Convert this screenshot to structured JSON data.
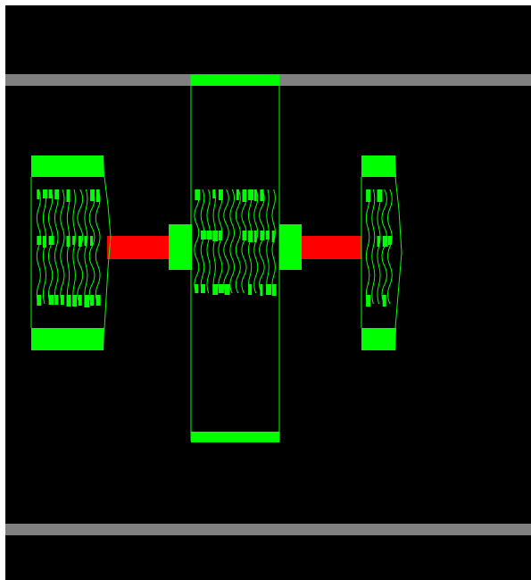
{
  "scene": {
    "background_color": "#000000",
    "frame_color": "#ffffff",
    "rail_color": "#808080",
    "body_color": "#00ff00",
    "link_color": "#ff0000",
    "rails": [
      {
        "name": "top-rail"
      },
      {
        "name": "bottom-rail"
      }
    ],
    "bodies": [
      {
        "name": "left-body"
      },
      {
        "name": "center-body"
      },
      {
        "name": "right-body"
      }
    ],
    "links": [
      {
        "name": "left-link-bar"
      },
      {
        "name": "right-link-bar"
      }
    ]
  }
}
